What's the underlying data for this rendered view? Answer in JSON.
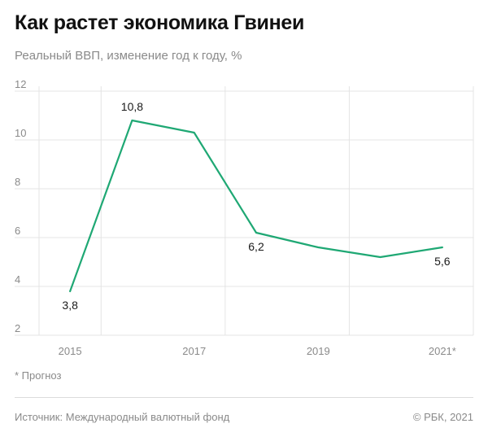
{
  "header": {
    "title": "Как растет экономика Гвинеи",
    "subtitle": "Реальный ВВП, изменение год к году, %"
  },
  "footer": {
    "note": "* Прогноз",
    "source": "Источник:  Международный валютный фонд",
    "copyright": "©  РБК, 2021"
  },
  "colors": {
    "line": "#1fa874",
    "grid": "#e4e4e4",
    "tick_text": "#8a8a8a"
  },
  "chart_data": {
    "type": "line",
    "title": "Как растет экономика Гвинеи",
    "subtitle": "Реальный ВВП, изменение год к году, %",
    "x": [
      2015,
      2016,
      2017,
      2018,
      2019,
      2020,
      2021
    ],
    "x_tick_labels": [
      "2015",
      "2017",
      "2019",
      "2021*"
    ],
    "x_tick_values": [
      2015,
      2017,
      2019,
      2021
    ],
    "series": [
      {
        "values": [
          3.8,
          10.8,
          10.3,
          6.2,
          5.6,
          5.2,
          5.6
        ]
      }
    ],
    "data_labels": [
      {
        "x": 2015,
        "text": "3,8"
      },
      {
        "x": 2016,
        "text": "10,8"
      },
      {
        "x": 2018,
        "text": "6,2"
      },
      {
        "x": 2021,
        "text": "5,6"
      }
    ],
    "ylim": [
      2,
      12
    ],
    "y_ticks": [
      2,
      4,
      6,
      8,
      10,
      12
    ],
    "grid": true,
    "forecast_x": [
      2021
    ]
  }
}
